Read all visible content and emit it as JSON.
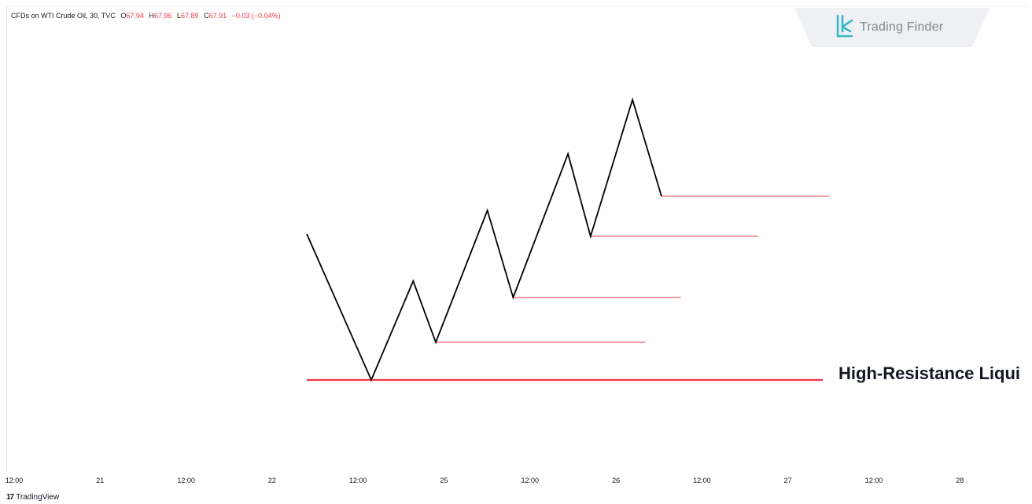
{
  "legend": {
    "symbol": "CFDs on WTI Crude Oil, 30, TVC",
    "open_label": "O",
    "open": "67.94",
    "high_label": "H",
    "high": "67.96",
    "low_label": "L",
    "low": "67.89",
    "close_label": "C",
    "close": "67.91",
    "change": "−0.03 (−0.04%)"
  },
  "brand": {
    "name": "Trading Finder",
    "platform": "TradingView"
  },
  "colors": {
    "price_line": "#000000",
    "level_line": "#f23645",
    "text": "#131722",
    "logo_grey": "#7e8794",
    "logo_accent": "#3bb7c7"
  },
  "chart_data": {
    "type": "line",
    "annotation": "High-Resistance Liqui",
    "x_ticks": [
      "12:00",
      "21",
      "12:00",
      "22",
      "12:00",
      "25",
      "12:00",
      "26",
      "12:00",
      "27",
      "12:00",
      "28"
    ],
    "zigzag": [
      {
        "x": 0.0,
        "y": 0.62
      },
      {
        "x": 1.0,
        "y": 0.0
      },
      {
        "x": 1.65,
        "y": 0.42
      },
      {
        "x": 2.0,
        "y": 0.16
      },
      {
        "x": 2.8,
        "y": 0.72
      },
      {
        "x": 3.2,
        "y": 0.35
      },
      {
        "x": 4.05,
        "y": 0.96
      },
      {
        "x": 4.4,
        "y": 0.61
      },
      {
        "x": 5.05,
        "y": 1.19
      },
      {
        "x": 5.5,
        "y": 0.78
      }
    ],
    "levels": [
      {
        "y": 0.0,
        "x_start": 0.0,
        "x_end": 8.0,
        "emphasis": "thick"
      },
      {
        "y": 0.16,
        "x_start": 2.0,
        "x_end": 5.25,
        "emphasis": "thin"
      },
      {
        "y": 0.35,
        "x_start": 3.2,
        "x_end": 5.8,
        "emphasis": "thin"
      },
      {
        "y": 0.61,
        "x_start": 4.4,
        "x_end": 7.0,
        "emphasis": "thin"
      },
      {
        "y": 0.78,
        "x_start": 5.5,
        "x_end": 8.1,
        "emphasis": "thin"
      }
    ]
  }
}
